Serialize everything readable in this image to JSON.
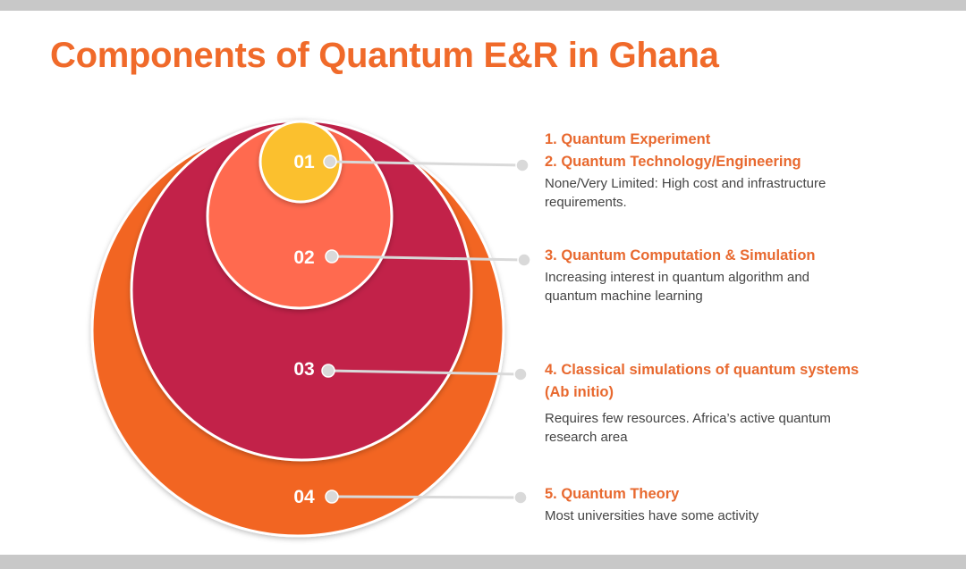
{
  "title": "Components of Quantum E&R in Ghana",
  "colors": {
    "accent": "#f06a2a",
    "circle_04": "#f26522",
    "circle_03": "#c2224a",
    "circle_02": "#ff6b50",
    "circle_01": "#fbc02d",
    "connector": "#d9d9d9"
  },
  "levels": [
    {
      "number": "01",
      "headings": [
        "1. Quantum Experiment",
        "2. Quantum Technology/Engineering"
      ],
      "description": "None/Very Limited: High cost and infrastructure requirements."
    },
    {
      "number": "02",
      "headings": [
        "3. Quantum Computation & Simulation"
      ],
      "description": "Increasing interest in quantum algorithm and quantum machine learning"
    },
    {
      "number": "03",
      "headings": [
        "4. Classical simulations of quantum systems (Ab initio)"
      ],
      "description": "Requires few resources. Africa’s active quantum research area"
    },
    {
      "number": "04",
      "headings": [
        "5. Quantum Theory"
      ],
      "description": "Most universities have some activity"
    }
  ]
}
